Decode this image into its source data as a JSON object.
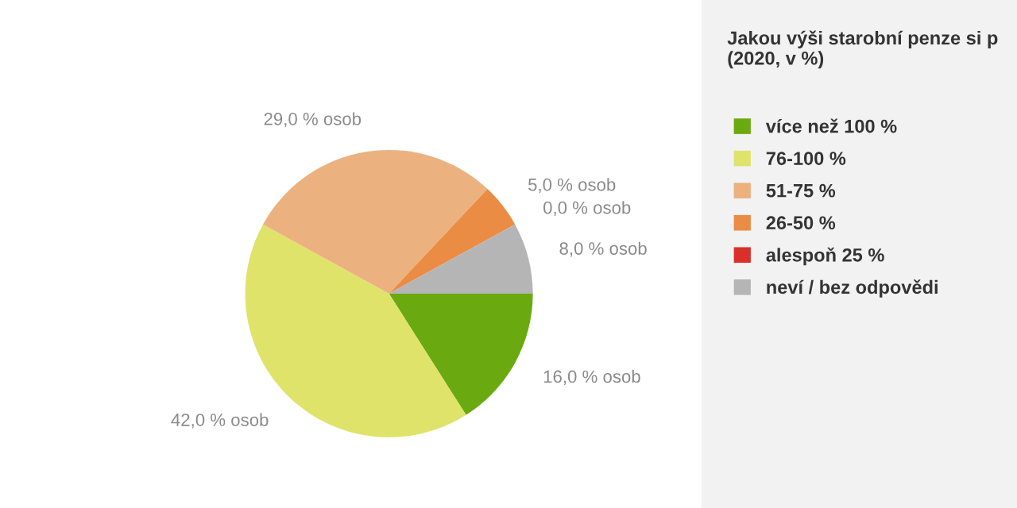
{
  "chart_data": {
    "type": "pie",
    "title": "Jakou výši starobní penze si p (2020, v %)",
    "categories": [
      "více než 100 %",
      "76-100 %",
      "51-75 %",
      "26-50 %",
      "alespoň 25 %",
      "neví / bez odpovědi"
    ],
    "values": [
      16,
      42,
      29,
      5,
      0,
      8
    ],
    "colors": [
      "#6aaa10",
      "#e0e36a",
      "#ebb27f",
      "#eb8c45",
      "#d9302a",
      "#b5b5b5"
    ],
    "value_labels": [
      "16,0 % osob",
      "42,0 % osob",
      "29,0 % osob",
      "5,0 % osob",
      "0,0 % osob",
      "8,0 % osob"
    ],
    "legend": "right"
  }
}
